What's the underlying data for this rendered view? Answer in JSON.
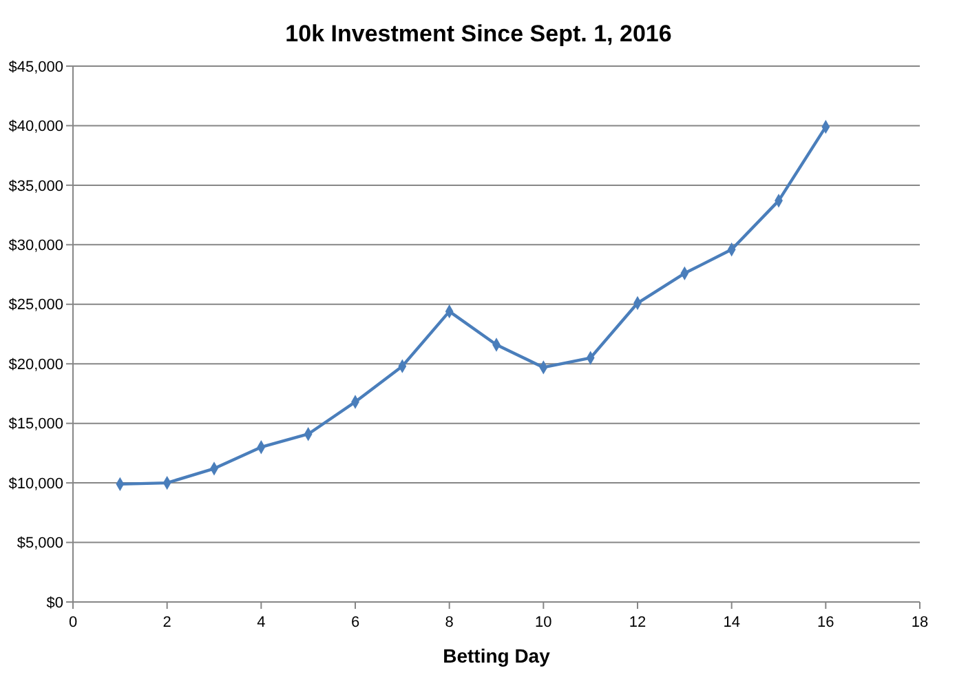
{
  "chart_data": {
    "type": "line",
    "title": "10k Investment Since Sept. 1, 2016",
    "xlabel": "Betting Day",
    "x": [
      1,
      2,
      3,
      4,
      5,
      6,
      7,
      8,
      9,
      10,
      11,
      12,
      13,
      14,
      15,
      16
    ],
    "series": [
      {
        "color": "#4a7ebb",
        "values": [
          9900,
          10000,
          11200,
          13000,
          14100,
          16800,
          19800,
          24400,
          21600,
          19700,
          20500,
          25100,
          27600,
          29600,
          33700,
          39900
        ]
      }
    ],
    "xlim": [
      0,
      18
    ],
    "xticks": [
      0,
      2,
      4,
      6,
      8,
      10,
      12,
      14,
      16,
      18
    ],
    "ylim": [
      0,
      45000
    ],
    "yticks": [
      {
        "value": 0,
        "label": "$0"
      },
      {
        "value": 5000,
        "label": "$5,000"
      },
      {
        "value": 10000,
        "label": "$10,000"
      },
      {
        "value": 15000,
        "label": "$15,000"
      },
      {
        "value": 20000,
        "label": "$20,000"
      },
      {
        "value": 25000,
        "label": "$25,000"
      },
      {
        "value": 30000,
        "label": "$30,000"
      },
      {
        "value": 35000,
        "label": "$35,000"
      },
      {
        "value": 40000,
        "label": "$40,000"
      },
      {
        "value": 45000,
        "label": "$45,000"
      }
    ],
    "grid": "y",
    "marker": "diamond",
    "line_style": "solid"
  }
}
